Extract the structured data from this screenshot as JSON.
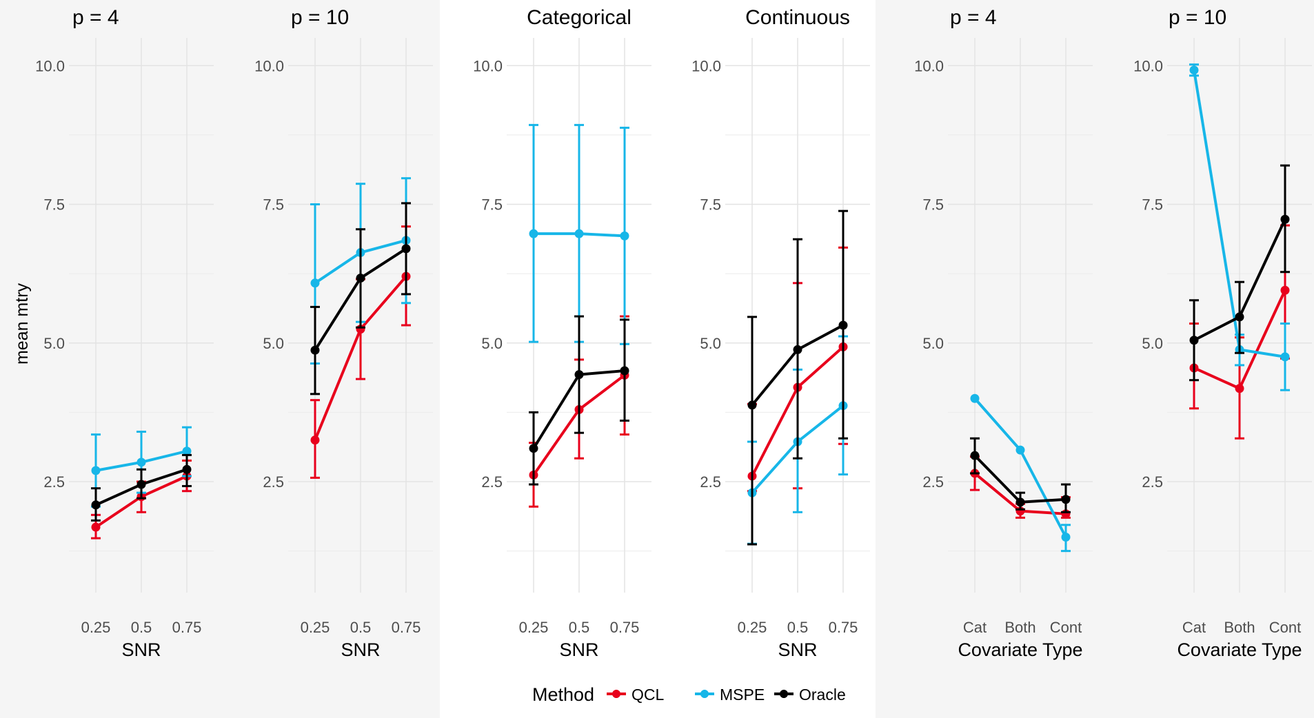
{
  "y_axis_label": "mean mtry",
  "legend": {
    "title": "Method",
    "items": [
      {
        "label": "QCL",
        "color": "#e8001c"
      },
      {
        "label": "MSPE",
        "color": "#17b6e8"
      },
      {
        "label": "Oracle",
        "color": "#000000"
      }
    ]
  },
  "chart_data": [
    {
      "type": "line",
      "group": "left",
      "title": "p = 4",
      "xlabel": "SNR",
      "ylabel": "mean mtry",
      "categories": [
        "0.25",
        "0.5",
        "0.75"
      ],
      "ylim": [
        0.5,
        10.5
      ],
      "yticks": [
        "2.5",
        "5.0",
        "7.5",
        "10.0"
      ],
      "series": [
        {
          "name": "QCL",
          "values": [
            1.68,
            2.23,
            2.6
          ],
          "lower": [
            1.48,
            1.95,
            2.33
          ],
          "upper": [
            1.9,
            2.5,
            2.88
          ]
        },
        {
          "name": "MSPE",
          "values": [
            2.7,
            2.85,
            3.05
          ],
          "lower": [
            2.05,
            2.3,
            2.6
          ],
          "upper": [
            3.35,
            3.4,
            3.48
          ]
        },
        {
          "name": "Oracle",
          "values": [
            2.08,
            2.45,
            2.72
          ],
          "lower": [
            1.8,
            2.2,
            2.42
          ],
          "upper": [
            2.38,
            2.72,
            2.98
          ]
        }
      ]
    },
    {
      "type": "line",
      "group": "left",
      "title": "p = 10",
      "xlabel": "SNR",
      "ylabel": "",
      "categories": [
        "0.25",
        "0.5",
        "0.75"
      ],
      "ylim": [
        0.5,
        10.5
      ],
      "yticks": [
        "2.5",
        "5.0",
        "7.5",
        "10.0"
      ],
      "series": [
        {
          "name": "QCL",
          "values": [
            3.25,
            5.25,
            6.2
          ],
          "lower": [
            2.57,
            4.35,
            5.32
          ],
          "upper": [
            3.97,
            6.15,
            7.1
          ]
        },
        {
          "name": "MSPE",
          "values": [
            6.08,
            6.63,
            6.85
          ],
          "lower": [
            4.63,
            5.38,
            5.72
          ],
          "upper": [
            7.5,
            7.87,
            7.97
          ]
        },
        {
          "name": "Oracle",
          "values": [
            4.87,
            6.17,
            6.7
          ],
          "lower": [
            4.08,
            5.28,
            5.88
          ],
          "upper": [
            5.65,
            7.05,
            7.52
          ]
        }
      ]
    },
    {
      "type": "line",
      "group": "middle",
      "title": "Categorical",
      "xlabel": "SNR",
      "ylabel": "",
      "categories": [
        "0.25",
        "0.5",
        "0.75"
      ],
      "ylim": [
        0.5,
        10.5
      ],
      "yticks": [
        "2.5",
        "5.0",
        "7.5",
        "10.0"
      ],
      "series": [
        {
          "name": "QCL",
          "values": [
            2.62,
            3.8,
            4.42
          ],
          "lower": [
            2.05,
            2.92,
            3.35
          ],
          "upper": [
            3.2,
            4.7,
            5.48
          ]
        },
        {
          "name": "MSPE",
          "values": [
            6.97,
            6.97,
            6.93
          ],
          "lower": [
            5.02,
            5.02,
            4.98
          ],
          "upper": [
            8.93,
            8.93,
            8.88
          ]
        },
        {
          "name": "Oracle",
          "values": [
            3.1,
            4.43,
            4.5
          ],
          "lower": [
            2.45,
            3.38,
            3.6
          ],
          "upper": [
            3.75,
            5.48,
            5.42
          ]
        }
      ]
    },
    {
      "type": "line",
      "group": "middle",
      "title": "Continuous",
      "xlabel": "SNR",
      "ylabel": "",
      "categories": [
        "0.25",
        "0.5",
        "0.75"
      ],
      "ylim": [
        0.5,
        10.5
      ],
      "yticks": [
        "2.5",
        "5.0",
        "7.5",
        "10.0"
      ],
      "series": [
        {
          "name": "QCL",
          "values": [
            2.6,
            4.2,
            4.93
          ],
          "lower": [
            2.33,
            2.38,
            3.18
          ],
          "upper": [
            3.9,
            6.08,
            6.72
          ]
        },
        {
          "name": "MSPE",
          "values": [
            2.3,
            3.22,
            3.87
          ],
          "lower": [
            1.38,
            1.95,
            2.63
          ],
          "upper": [
            3.22,
            4.52,
            5.12
          ]
        },
        {
          "name": "Oracle",
          "values": [
            3.88,
            4.88,
            5.32
          ],
          "lower": [
            1.37,
            2.92,
            3.28
          ],
          "upper": [
            5.47,
            6.87,
            7.38
          ]
        }
      ]
    },
    {
      "type": "line",
      "group": "right",
      "title": "p = 4",
      "xlabel": "Covariate Type",
      "ylabel": "",
      "categories": [
        "Cat",
        "Both",
        "Cont"
      ],
      "ylim": [
        0.5,
        10.5
      ],
      "yticks": [
        "2.5",
        "5.0",
        "7.5",
        "10.0"
      ],
      "series": [
        {
          "name": "QCL",
          "values": [
            2.65,
            1.97,
            1.92
          ],
          "lower": [
            2.35,
            1.85,
            1.85
          ],
          "upper": [
            2.95,
            2.1,
            2.22
          ]
        },
        {
          "name": "MSPE",
          "values": [
            4.0,
            3.07,
            1.5
          ],
          "lower": [
            4.0,
            3.07,
            1.25
          ],
          "upper": [
            4.0,
            3.07,
            1.72
          ]
        },
        {
          "name": "Oracle",
          "values": [
            2.97,
            2.13,
            2.18
          ],
          "lower": [
            2.65,
            2.0,
            1.95
          ],
          "upper": [
            3.28,
            2.3,
            2.45
          ]
        }
      ]
    },
    {
      "type": "line",
      "group": "right",
      "title": "p = 10",
      "xlabel": "Covariate Type",
      "ylabel": "",
      "categories": [
        "Cat",
        "Both",
        "Cont"
      ],
      "ylim": [
        0.5,
        10.5
      ],
      "yticks": [
        "2.5",
        "5.0",
        "7.5",
        "10.0"
      ],
      "series": [
        {
          "name": "QCL",
          "values": [
            4.55,
            4.18,
            5.95
          ],
          "lower": [
            3.82,
            3.28,
            4.72
          ],
          "upper": [
            5.35,
            5.1,
            7.12
          ]
        },
        {
          "name": "MSPE",
          "values": [
            9.92,
            4.88,
            4.75
          ],
          "lower": [
            9.82,
            4.6,
            4.15
          ],
          "upper": [
            10.02,
            5.15,
            5.35
          ]
        },
        {
          "name": "Oracle",
          "values": [
            5.05,
            5.47,
            7.23
          ],
          "lower": [
            4.33,
            4.82,
            6.28
          ],
          "upper": [
            5.77,
            6.1,
            8.2
          ]
        }
      ]
    }
  ]
}
